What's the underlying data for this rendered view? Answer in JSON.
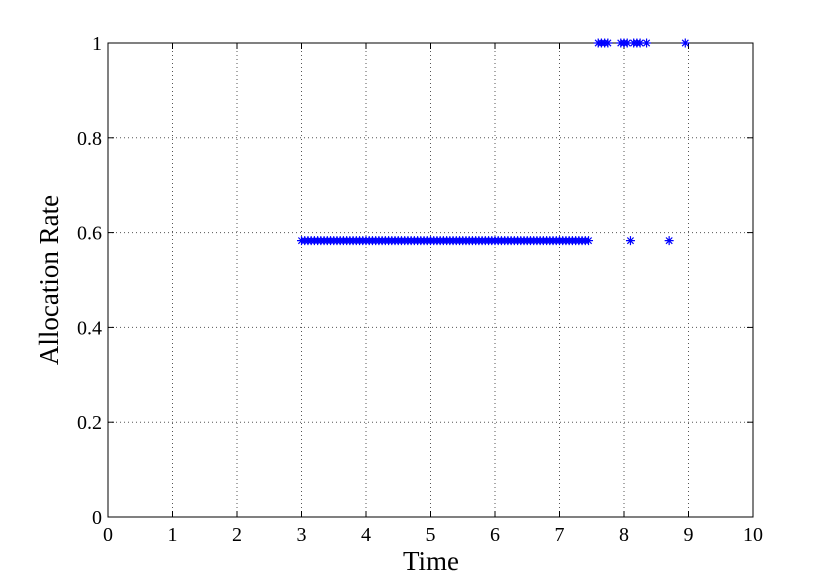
{
  "chart_data": {
    "type": "scatter",
    "xlabel": "Time",
    "ylabel": "Allocation Rate",
    "color": "#0000ff",
    "marker": "star",
    "grid": true,
    "x": [
      3,
      3.05,
      3.1,
      3.15,
      3.2,
      3.25,
      3.3,
      3.35,
      3.4,
      3.45,
      3.5,
      3.55,
      3.6,
      3.65,
      3.7,
      3.75,
      3.8,
      3.85,
      3.9,
      3.95,
      4,
      4.05,
      4.1,
      4.15,
      4.2,
      4.25,
      4.3,
      4.35,
      4.4,
      4.45,
      4.5,
      4.55,
      4.6,
      4.65,
      4.7,
      4.75,
      4.8,
      4.85,
      4.9,
      4.95,
      5,
      5.05,
      5.1,
      5.15,
      5.2,
      5.25,
      5.3,
      5.35,
      5.4,
      5.45,
      5.5,
      5.55,
      5.6,
      5.65,
      5.7,
      5.75,
      5.8,
      5.85,
      5.9,
      5.95,
      6,
      6.05,
      6.1,
      6.15,
      6.2,
      6.25,
      6.3,
      6.35,
      6.4,
      6.45,
      6.5,
      6.55,
      6.6,
      6.65,
      6.7,
      6.75,
      6.8,
      6.85,
      6.9,
      6.95,
      7,
      7.05,
      7.1,
      7.15,
      7.2,
      7.25,
      7.3,
      7.35,
      7.4,
      7.45,
      7.6,
      7.65,
      7.7,
      7.75,
      7.95,
      8,
      8.05,
      8.1,
      8.15,
      8.2,
      8.25,
      8.35,
      8.7,
      8.95
    ],
    "values": [
      0.583,
      0.583,
      0.583,
      0.583,
      0.583,
      0.583,
      0.583,
      0.583,
      0.583,
      0.583,
      0.583,
      0.583,
      0.583,
      0.583,
      0.583,
      0.583,
      0.583,
      0.583,
      0.583,
      0.583,
      0.583,
      0.583,
      0.583,
      0.583,
      0.583,
      0.583,
      0.583,
      0.583,
      0.583,
      0.583,
      0.583,
      0.583,
      0.583,
      0.583,
      0.583,
      0.583,
      0.583,
      0.583,
      0.583,
      0.583,
      0.583,
      0.583,
      0.583,
      0.583,
      0.583,
      0.583,
      0.583,
      0.583,
      0.583,
      0.583,
      0.583,
      0.583,
      0.583,
      0.583,
      0.583,
      0.583,
      0.583,
      0.583,
      0.583,
      0.583,
      0.583,
      0.583,
      0.583,
      0.583,
      0.583,
      0.583,
      0.583,
      0.583,
      0.583,
      0.583,
      0.583,
      0.583,
      0.583,
      0.583,
      0.583,
      0.583,
      0.583,
      0.583,
      0.583,
      0.583,
      0.583,
      0.583,
      0.583,
      0.583,
      0.583,
      0.583,
      0.583,
      0.583,
      0.583,
      0.583,
      1,
      1,
      1,
      1,
      1,
      1,
      1,
      0.583,
      1,
      1,
      1,
      1,
      0.583,
      1
    ],
    "xlim": [
      0,
      10
    ],
    "xticks": [
      0,
      1,
      2,
      3,
      4,
      5,
      6,
      7,
      8,
      9,
      10
    ],
    "ylim": [
      0,
      1
    ],
    "yticks": [
      0,
      0.2,
      0.4,
      0.6,
      0.8,
      1
    ]
  }
}
